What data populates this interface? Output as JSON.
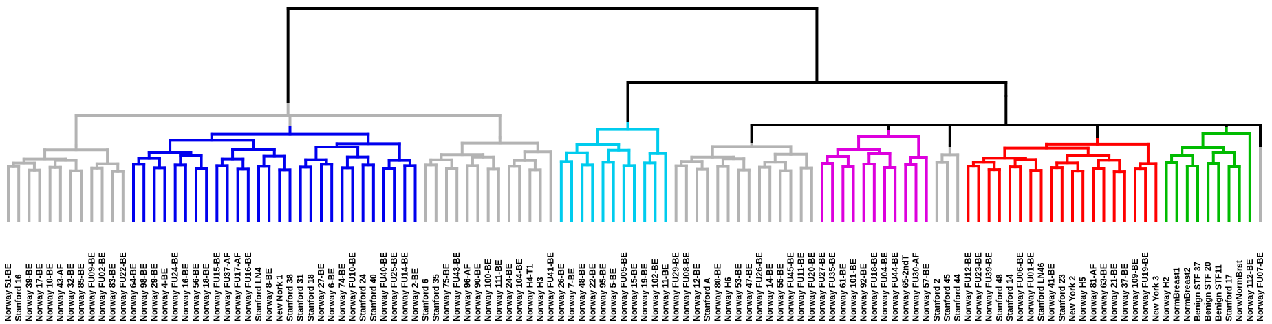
{
  "leaves": [
    {
      "label": "Norway 51-BE",
      "group": "gray"
    },
    {
      "label": "Stanford 16",
      "group": "gray"
    },
    {
      "label": "Norway 39-BE",
      "group": "gray"
    },
    {
      "label": "Norway 17-BE",
      "group": "gray"
    },
    {
      "label": "Norway 10-BE",
      "group": "gray"
    },
    {
      "label": "Norway 43-AF",
      "group": "gray"
    },
    {
      "label": "Norway 32-BE",
      "group": "gray"
    },
    {
      "label": "Norway 85-BE",
      "group": "gray"
    },
    {
      "label": "Norway FU09-BE",
      "group": "gray"
    },
    {
      "label": "Norway FU02-BE",
      "group": "gray"
    },
    {
      "label": "Norway 83-BE",
      "group": "gray"
    },
    {
      "label": "Norway FU22-BE",
      "group": "gray"
    },
    {
      "label": "Norway 64-BE",
      "group": "blue"
    },
    {
      "label": "Norway 98-BE",
      "group": "blue"
    },
    {
      "label": "Norway 29-BE",
      "group": "blue"
    },
    {
      "label": "Norway 4-BE",
      "group": "blue"
    },
    {
      "label": "Norway FU24-BE",
      "group": "blue"
    },
    {
      "label": "Norway 16-BE",
      "group": "blue"
    },
    {
      "label": "Norway 56-BE",
      "group": "blue"
    },
    {
      "label": "Norway 18-BE",
      "group": "blue"
    },
    {
      "label": "Norway FU15-BE",
      "group": "blue"
    },
    {
      "label": "Norway FU37-AF",
      "group": "blue"
    },
    {
      "label": "Norway FU17-AF",
      "group": "blue"
    },
    {
      "label": "Norway FU16-BE",
      "group": "blue"
    },
    {
      "label": "Stanford LN4",
      "group": "blue"
    },
    {
      "label": "Norway 8-BE",
      "group": "blue"
    },
    {
      "label": "New Nork 1",
      "group": "blue"
    },
    {
      "label": "Stanford 38",
      "group": "blue"
    },
    {
      "label": "Stanford 31",
      "group": "blue"
    },
    {
      "label": "Stanford 18",
      "group": "blue"
    },
    {
      "label": "Norway 27-BE",
      "group": "blue"
    },
    {
      "label": "Norway 6-BE",
      "group": "blue"
    },
    {
      "label": "Norway 74-BE",
      "group": "blue"
    },
    {
      "label": "Norway FU10-BE",
      "group": "blue"
    },
    {
      "label": "Stanford 24",
      "group": "blue"
    },
    {
      "label": "Stanford 40",
      "group": "blue"
    },
    {
      "label": "Norway FU40-BE",
      "group": "blue"
    },
    {
      "label": "Norway FU25-BE",
      "group": "blue"
    },
    {
      "label": "Norway FU14-BE",
      "group": "blue"
    },
    {
      "label": "Norway 2-BE",
      "group": "blue"
    },
    {
      "label": "Stanford 6",
      "group": "gray"
    },
    {
      "label": "Stanford 35",
      "group": "gray"
    },
    {
      "label": "Norway 75-BE",
      "group": "gray"
    },
    {
      "label": "Norway FU43-BE",
      "group": "gray"
    },
    {
      "label": "Norway 96-AF",
      "group": "gray"
    },
    {
      "label": "Norway 90-BE",
      "group": "gray"
    },
    {
      "label": "Norway 100-BE",
      "group": "gray"
    },
    {
      "label": "Norway 111-BE",
      "group": "gray"
    },
    {
      "label": "Norway 24-BE",
      "group": "gray"
    },
    {
      "label": "Norway 104-BE",
      "group": "gray"
    },
    {
      "label": "Norway H4-T1",
      "group": "gray"
    },
    {
      "label": "Norway H3",
      "group": "gray"
    },
    {
      "label": "Norway FU41-BE",
      "group": "gray"
    },
    {
      "label": "Norway 26-BE",
      "group": "cyan"
    },
    {
      "label": "Norway 7-BE",
      "group": "cyan"
    },
    {
      "label": "Norway 48-BE",
      "group": "cyan"
    },
    {
      "label": "Norway 22-BE",
      "group": "cyan"
    },
    {
      "label": "Norway 95-BE",
      "group": "cyan"
    },
    {
      "label": "Norway 5-BE",
      "group": "cyan"
    },
    {
      "label": "Norway FU05-BE",
      "group": "cyan"
    },
    {
      "label": "Norway 15-BE",
      "group": "cyan"
    },
    {
      "label": "Norway 19-BE",
      "group": "cyan"
    },
    {
      "label": "Norway 102-BE",
      "group": "cyan"
    },
    {
      "label": "Norway 11-BE",
      "group": "cyan"
    },
    {
      "label": "Norway FU29-BE",
      "group": "gray"
    },
    {
      "label": "Norway FU08-BE",
      "group": "gray"
    },
    {
      "label": "Norway 12-BE",
      "group": "gray"
    },
    {
      "label": "Stanford A",
      "group": "gray"
    },
    {
      "label": "Norway 80-BE",
      "group": "gray"
    },
    {
      "label": "Norway H6",
      "group": "gray"
    },
    {
      "label": "Norway 53-BE",
      "group": "gray"
    },
    {
      "label": "Norway 47-BE",
      "group": "gray"
    },
    {
      "label": "Norway FU26-BE",
      "group": "gray"
    },
    {
      "label": "Norway 14-BE",
      "group": "gray"
    },
    {
      "label": "Norway 55-BE",
      "group": "gray"
    },
    {
      "label": "Norway FU45-BE",
      "group": "gray"
    },
    {
      "label": "Norway FU11-BE",
      "group": "gray"
    },
    {
      "label": "Norway FU20-BE",
      "group": "gray"
    },
    {
      "label": "Norway FU27-BE",
      "group": "magenta"
    },
    {
      "label": "Norway FU35-BE",
      "group": "magenta"
    },
    {
      "label": "Norway 61-BE",
      "group": "magenta"
    },
    {
      "label": "Norway 101-BE",
      "group": "magenta"
    },
    {
      "label": "Norway 92-BE",
      "group": "magenta"
    },
    {
      "label": "Norway FU18-BE",
      "group": "magenta"
    },
    {
      "label": "Norway FU04-BE",
      "group": "magenta"
    },
    {
      "label": "Norway FU44-BE",
      "group": "magenta"
    },
    {
      "label": "Norway 65-2ndT",
      "group": "magenta"
    },
    {
      "label": "Norway FU30-AF",
      "group": "magenta"
    },
    {
      "label": "Norway 57-BE",
      "group": "magenta"
    },
    {
      "label": "Stanford 2",
      "group": "gray"
    },
    {
      "label": "Stanford 45",
      "group": "gray"
    },
    {
      "label": "Stanford 44",
      "group": "gray"
    },
    {
      "label": "Norway FU12-BE",
      "group": "red"
    },
    {
      "label": "Norway FU23-BE",
      "group": "red"
    },
    {
      "label": "Norway FU39-BE",
      "group": "red"
    },
    {
      "label": "Stanford 48",
      "group": "red"
    },
    {
      "label": "Stanford 14",
      "group": "red"
    },
    {
      "label": "Norway FU06-BE",
      "group": "red"
    },
    {
      "label": "Norway FU01-BE",
      "group": "red"
    },
    {
      "label": "Stanford LN46",
      "group": "red"
    },
    {
      "label": "Norway 41-BE",
      "group": "red"
    },
    {
      "label": "Stanford 23",
      "group": "red"
    },
    {
      "label": "New York 2",
      "group": "red"
    },
    {
      "label": "Norway H5",
      "group": "red"
    },
    {
      "label": "Norway 81-AF",
      "group": "red"
    },
    {
      "label": "Norway 63-BE",
      "group": "red"
    },
    {
      "label": "Norway 21-BE",
      "group": "red"
    },
    {
      "label": "Norway 37-BE",
      "group": "red"
    },
    {
      "label": "Norway 109-BE",
      "group": "red"
    },
    {
      "label": "Norway FU19-BE",
      "group": "red"
    },
    {
      "label": "New York 3",
      "group": "red"
    },
    {
      "label": "Norway H2",
      "group": "green"
    },
    {
      "label": "NormBreast1",
      "group": "green"
    },
    {
      "label": "NormBreast2",
      "group": "green"
    },
    {
      "label": "Benign STF 37",
      "group": "green"
    },
    {
      "label": "Benign STF 20",
      "group": "green"
    },
    {
      "label": "Benign STF11",
      "group": "green"
    },
    {
      "label": "Stanford 17",
      "group": "green"
    },
    {
      "label": "NorwNormBrst",
      "group": "green"
    },
    {
      "label": "Norway 112-BE",
      "group": "green"
    },
    {
      "label": "Norway FU07-BE",
      "group": "gray"
    }
  ],
  "colors": {
    "gray": "#b3b3b3",
    "blue": "#0000ee",
    "cyan": "#00ccee",
    "magenta": "#dd00dd",
    "red": "#ff0000",
    "green": "#00bb00",
    "backbone": "#000000"
  }
}
